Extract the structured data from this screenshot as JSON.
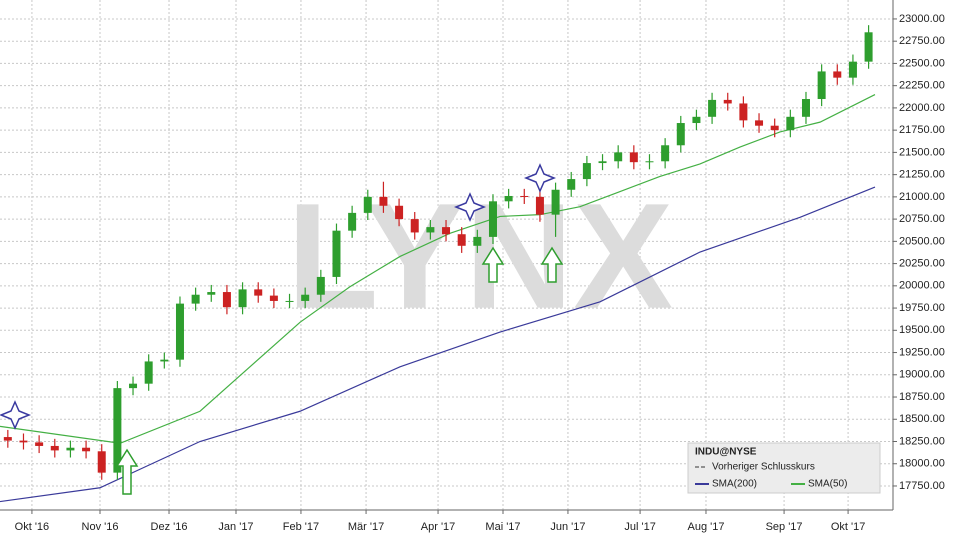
{
  "chart_data": {
    "type": "candlestick",
    "symbol": "INDU@NYSE",
    "previous_close_label": "Vorheriger Schlusskurs",
    "watermark": "LYNX",
    "up_color": "#2e9e2e",
    "down_color": "#cc2222",
    "x": [
      0.5,
      1.5,
      2.5,
      3.5,
      4.5,
      5.5,
      6.5,
      7.5,
      8.5,
      9.5,
      10.5,
      11.5,
      12.5,
      13.5,
      14.5,
      15.5,
      16.5,
      17.5,
      18.5,
      19.5,
      20.5,
      21.5,
      22.5,
      23.5,
      24.5,
      25.5,
      26.5,
      27.5,
      28.5,
      29.5,
      30.5,
      31.5,
      32.5,
      33.5,
      34.5,
      35.5,
      36.5,
      37.5,
      38.5,
      39.5,
      40.5,
      41.5,
      42.5,
      43.5,
      44.5,
      45.5,
      46.5,
      47.5,
      48.5,
      49.5,
      50.5,
      51.5,
      52.5,
      53.5,
      54.5,
      55.5
    ],
    "open": [
      18300,
      18260,
      18240,
      18200,
      18150,
      18180,
      18140,
      17900,
      18850,
      18900,
      19150,
      19170,
      19800,
      19900,
      19930,
      19760,
      19960,
      19890,
      19830,
      19830,
      19900,
      20100,
      20620,
      20820,
      21000,
      20900,
      20750,
      20600,
      20660,
      20580,
      20450,
      20550,
      20950,
      21010,
      21000,
      20800,
      21080,
      21200,
      21380,
      21400,
      21500,
      21390,
      21400,
      21580,
      21830,
      21900,
      22090,
      22050,
      21860,
      21800,
      21750,
      21900,
      22100,
      22410,
      22340,
      22520
    ],
    "high": [
      18380,
      18340,
      18320,
      18280,
      18260,
      18260,
      18220,
      18930,
      18980,
      19230,
      19250,
      19880,
      19980,
      20010,
      20010,
      20040,
      20040,
      19970,
      19910,
      19980,
      20180,
      20700,
      20900,
      21080,
      21170,
      20980,
      20830,
      20740,
      20740,
      20660,
      20630,
      21030,
      21090,
      21090,
      21080,
      21160,
      21280,
      21460,
      21480,
      21580,
      21580,
      21480,
      21660,
      21910,
      21980,
      22170,
      22170,
      22130,
      21940,
      21880,
      21980,
      22180,
      22490,
      22490,
      22600,
      22930
    ],
    "low": [
      18180,
      18160,
      18120,
      18070,
      18070,
      18060,
      17820,
      17820,
      18770,
      18820,
      19070,
      19090,
      19720,
      19820,
      19680,
      19680,
      19810,
      19750,
      19750,
      19750,
      19820,
      20020,
      20540,
      20740,
      20820,
      20670,
      20520,
      20520,
      20500,
      20370,
      20370,
      20470,
      20870,
      20920,
      20720,
      20550,
      21000,
      21120,
      21300,
      21320,
      21310,
      21310,
      21320,
      21500,
      21750,
      21820,
      21970,
      21780,
      21720,
      21670,
      21670,
      21820,
      22020,
      22260,
      22260,
      22440
    ],
    "close": [
      18260,
      18240,
      18200,
      18150,
      18180,
      18140,
      17900,
      18850,
      18900,
      19150,
      19170,
      19800,
      19900,
      19930,
      19760,
      19960,
      19890,
      19830,
      19830,
      19900,
      20100,
      20620,
      20820,
      21000,
      20900,
      20750,
      20600,
      20660,
      20580,
      20450,
      20550,
      20950,
      21010,
      21000,
      20800,
      21080,
      21200,
      21380,
      21400,
      21500,
      21390,
      21400,
      21580,
      21830,
      21900,
      22090,
      22050,
      21860,
      21800,
      21750,
      21900,
      22100,
      22410,
      22340,
      22520,
      22850
    ],
    "series": [
      {
        "name": "SMA(200)",
        "color": "#3a3a9a",
        "x": [
          0,
          6.39,
          12.78,
          19.17,
          25.56,
          31.95,
          38.34,
          44.73,
          51.12,
          55.91
        ],
        "values": [
          17575,
          17730,
          18250,
          18590,
          19090,
          19480,
          19820,
          20380,
          20770,
          21110
        ]
      },
      {
        "name": "SMA(50)",
        "color": "#44b044",
        "x": [
          0,
          7.67,
          12.78,
          15.97,
          19.17,
          22.36,
          25.56,
          28.75,
          31.95,
          34.5,
          37.06,
          39.62,
          42.17,
          44.73,
          47.28,
          49.84,
          52.4,
          55.91
        ],
        "values": [
          18420,
          18230,
          18590,
          19090,
          19590,
          19990,
          20330,
          20590,
          20780,
          20800,
          20890,
          21060,
          21230,
          21370,
          21560,
          21730,
          21840,
          22150
        ]
      }
    ],
    "xlim": [
      0,
      57.06
    ],
    "xticks": [
      {
        "value": 2.04,
        "label": "Okt '16"
      },
      {
        "value": 6.39,
        "label": "Nov '16"
      },
      {
        "value": 10.8,
        "label": "Dez '16"
      },
      {
        "value": 15.08,
        "label": "Jan '17"
      },
      {
        "value": 19.23,
        "label": "Feb '17"
      },
      {
        "value": 23.39,
        "label": "Mär '17"
      },
      {
        "value": 27.99,
        "label": "Apr '17"
      },
      {
        "value": 32.14,
        "label": "Mai '17"
      },
      {
        "value": 36.29,
        "label": "Jun '17"
      },
      {
        "value": 40.9,
        "label": "Jul '17"
      },
      {
        "value": 45.11,
        "label": "Aug '17"
      },
      {
        "value": 50.1,
        "label": "Sep '17"
      },
      {
        "value": 54.19,
        "label": "Okt '17"
      }
    ],
    "ylim": [
      17480,
      23213
    ],
    "yticks": [
      {
        "value": 17750,
        "label": "17750.00"
      },
      {
        "value": 18000,
        "label": "18000.00"
      },
      {
        "value": 18250,
        "label": "18250.00"
      },
      {
        "value": 18500,
        "label": "18500.00"
      },
      {
        "value": 18750,
        "label": "18750.00"
      },
      {
        "value": 19000,
        "label": "19000.00"
      },
      {
        "value": 19250,
        "label": "19250.00"
      },
      {
        "value": 19500,
        "label": "19500.00"
      },
      {
        "value": 19750,
        "label": "19750.00"
      },
      {
        "value": 20000,
        "label": "20000.00"
      },
      {
        "value": 20250,
        "label": "20250.00"
      },
      {
        "value": 20500,
        "label": "20500.00"
      },
      {
        "value": 20750,
        "label": "20750.00"
      },
      {
        "value": 21000,
        "label": "21000.00"
      },
      {
        "value": 21250,
        "label": "21250.00"
      },
      {
        "value": 21500,
        "label": "21500.00"
      },
      {
        "value": 21750,
        "label": "21750.00"
      },
      {
        "value": 22000,
        "label": "22000.00"
      },
      {
        "value": 22250,
        "label": "22250.00"
      },
      {
        "value": 22500,
        "label": "22500.00"
      },
      {
        "value": 22750,
        "label": "22750.00"
      },
      {
        "value": 23000,
        "label": "23000.00"
      }
    ],
    "grid": true
  }
}
